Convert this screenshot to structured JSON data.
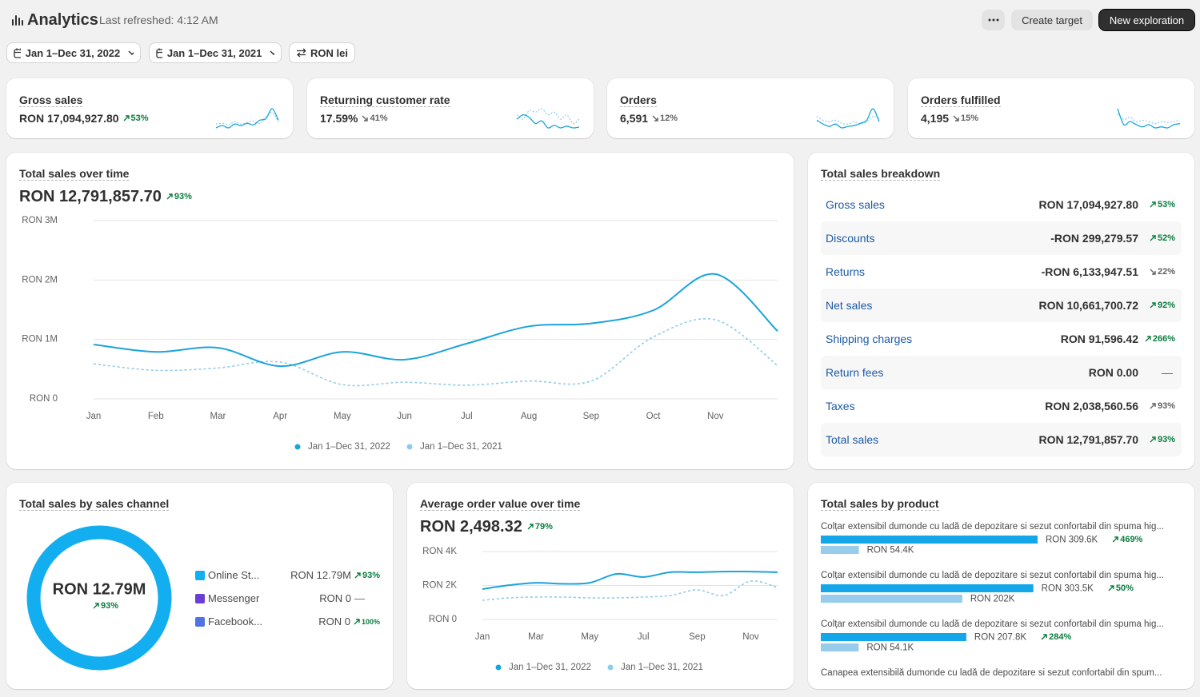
{
  "header": {
    "title": "Analytics",
    "subtitle": "Last refreshed: 4:12 AM",
    "actions": [
      "Create target",
      "New exploration"
    ]
  },
  "filters": [
    "Jan 1–Dec 31, 2022",
    "Jan 1–Dec 31, 2021",
    "RON lei"
  ],
  "kpis": [
    {
      "label": "Gross sales",
      "value": "RON 17,094,927.80",
      "change": "53%",
      "direction": "up",
      "tone": "positive",
      "spark": {
        "current": [
          4,
          4.3,
          4,
          4.5,
          4.3,
          4.6,
          4.4,
          5,
          5.2,
          6.5,
          5
        ],
        "previous": [
          4.5,
          4.6,
          4.4,
          4.8,
          4.5,
          4.7,
          4.9,
          4.6,
          5.5,
          6,
          4.8
        ]
      }
    },
    {
      "label": "Returning customer rate",
      "value": "17.59%",
      "change": "41%",
      "direction": "down",
      "tone": "neutral",
      "spark": {
        "current": [
          6,
          6.5,
          6.2,
          5.5,
          5.8,
          5,
          5.3,
          5,
          5.2,
          5,
          5.1
        ],
        "previous": [
          6.5,
          6,
          7,
          6.8,
          7.2,
          6.5,
          6.8,
          6,
          6.5,
          5.5,
          6
        ]
      }
    },
    {
      "label": "Orders",
      "value": "6,591",
      "change": "12%",
      "direction": "down",
      "tone": "neutral",
      "spark": {
        "current": [
          5,
          4.5,
          4.2,
          4.5,
          4,
          4.2,
          4.3,
          4.6,
          5,
          6.5,
          4.8
        ],
        "previous": [
          5.5,
          5,
          4.8,
          5,
          4.6,
          4.5,
          4.8,
          4.5,
          4.8,
          5.5,
          5.2
        ]
      }
    },
    {
      "label": "Orders fulfilled",
      "value": "4,195",
      "change": "15%",
      "direction": "down",
      "tone": "neutral",
      "spark": {
        "current": [
          6,
          4.5,
          4.8,
          4.5,
          4.3,
          4.5,
          4.2,
          4.3,
          4.2,
          4.5,
          4.6
        ],
        "previous": [
          5.5,
          5,
          5.2,
          4.8,
          4.9,
          4.8,
          4.6,
          4.8,
          4.7,
          4.8,
          4.9
        ]
      }
    }
  ],
  "sales_over_time": {
    "title": "Total sales over time",
    "total": "RON 12,791,857.70",
    "change": "93%",
    "direction": "up",
    "tone": "positive",
    "chart_data": {
      "type": "line",
      "categories": [
        "Jan",
        "Feb",
        "Mar",
        "Apr",
        "May",
        "Jun",
        "Jul",
        "Aug",
        "Sep",
        "Oct",
        "Nov",
        null
      ],
      "series": [
        {
          "name": "Jan 1–Dec 31, 2022",
          "color": "#1ba4dc",
          "values": [
            915000,
            790000,
            860000,
            550000,
            790000,
            660000,
            930000,
            1220000,
            1270000,
            1490000,
            2100000,
            1140000
          ]
        },
        {
          "name": "Jan 1–Dec 31, 2021",
          "color": "#8fcbea",
          "dashed": true,
          "values": [
            590000,
            480000,
            520000,
            620000,
            240000,
            280000,
            230000,
            300000,
            300000,
            1040000,
            1330000,
            560000
          ]
        }
      ],
      "ylim": [
        0,
        3000000
      ],
      "yticks": [
        {
          "value": 0,
          "label": "RON 0"
        },
        {
          "value": 1000000,
          "label": "RON 1M"
        },
        {
          "value": 2000000,
          "label": "RON 2M"
        },
        {
          "value": 3000000,
          "label": "RON 3M"
        }
      ],
      "grid": true,
      "legend": "bottom"
    }
  },
  "breakdown": {
    "title": "Total sales breakdown",
    "rows": [
      {
        "label": "Gross sales",
        "value": "RON 17,094,927.80",
        "change": "53%",
        "direction": "up",
        "tone": "positive"
      },
      {
        "label": "Discounts",
        "value": "-RON 299,279.57",
        "change": "52%",
        "direction": "up",
        "tone": "positive"
      },
      {
        "label": "Returns",
        "value": "-RON 6,133,947.51",
        "change": "22%",
        "direction": "down",
        "tone": "neutral"
      },
      {
        "label": "Net sales",
        "value": "RON 10,661,700.72",
        "change": "92%",
        "direction": "up",
        "tone": "positive"
      },
      {
        "label": "Shipping charges",
        "value": "RON 91,596.42",
        "change": "266%",
        "direction": "up",
        "tone": "positive"
      },
      {
        "label": "Return fees",
        "value": "RON 0.00",
        "change": "—",
        "direction": "none",
        "tone": "neutral"
      },
      {
        "label": "Taxes",
        "value": "RON 2,038,560.56",
        "change": "93%",
        "direction": "up",
        "tone": "neutral"
      },
      {
        "label": "Total sales",
        "value": "RON 12,791,857.70",
        "change": "93%",
        "direction": "up",
        "tone": "positive"
      }
    ]
  },
  "sales_by_channel": {
    "title": "Total sales by sales channel",
    "center_value": "RON 12.79M",
    "center_change": "93%",
    "center_direction": "up",
    "center_tone": "positive",
    "chart_data": {
      "type": "donut",
      "categories": [
        "Online St...",
        "Messenger",
        "Facebook..."
      ],
      "values": [
        12790000,
        0,
        0
      ],
      "value_labels": [
        "RON 12.79M",
        "RON 0",
        "RON 0"
      ],
      "colors": [
        "#13aef0",
        "#6b3fd6",
        "#4f73e3"
      ],
      "changes": [
        "93%",
        "—",
        "100%"
      ],
      "directions": [
        "up",
        "none",
        "up"
      ]
    }
  },
  "aov": {
    "title": "Average order value over time",
    "total": "RON 2,498.32",
    "change": "79%",
    "direction": "up",
    "tone": "positive",
    "chart_data": {
      "type": "line",
      "categories": [
        "Jan",
        null,
        "Mar",
        null,
        "May",
        null,
        "Jul",
        null,
        "Sep",
        null,
        "Nov",
        null
      ],
      "series": [
        {
          "name": "Jan 1–Dec 31, 2022",
          "color": "#1ba4dc",
          "values": [
            1790,
            2020,
            2160,
            2100,
            2160,
            2680,
            2500,
            2780,
            2780,
            2820,
            2820,
            2780
          ]
        },
        {
          "name": "Jan 1–Dec 31, 2021",
          "color": "#8fcbea",
          "dashed": true,
          "values": [
            1130,
            1270,
            1320,
            1320,
            1270,
            1270,
            1320,
            1410,
            1740,
            1410,
            2260,
            1880
          ]
        }
      ],
      "ylim": [
        0,
        4000
      ],
      "yticks": [
        {
          "value": 0,
          "label": "RON 0"
        },
        {
          "value": 2000,
          "label": "RON 2K"
        },
        {
          "value": 4000,
          "label": "RON 4K"
        }
      ],
      "grid": true,
      "legend": "bottom"
    }
  },
  "products": {
    "title": "Total sales by product",
    "chart_data": {
      "type": "bar",
      "orientation": "horizontal",
      "categories": [
        "Colțar extensibil dumonde cu ladă de depozitare si sezut confortabil din spuma hig...",
        "Colțar extensibil dumonde cu ladă de depozitare si sezut confortabil din spuma hig...",
        "Colțar extensibil dumonde cu ladă de depozitare si sezut confortabil din spuma hig...",
        "Canapea extensibilă dumonde cu ladă de depozitare si sezut confortabil din spum..."
      ],
      "series": [
        {
          "color": "#13a6e8",
          "values": [
            309600,
            303500,
            207800,
            null
          ],
          "value_labels": [
            "RON 309.6K",
            "RON 303.5K",
            "RON 207.8K",
            null
          ]
        },
        {
          "color": "#97cdeb",
          "values": [
            54400,
            202000,
            54100,
            null
          ],
          "value_labels": [
            "RON 54.4K",
            "RON 202K",
            "RON 54.1K",
            null
          ]
        }
      ],
      "changes": [
        "469%",
        "50%",
        "284%",
        null
      ],
      "tone": "positive",
      "direction": "up"
    }
  }
}
